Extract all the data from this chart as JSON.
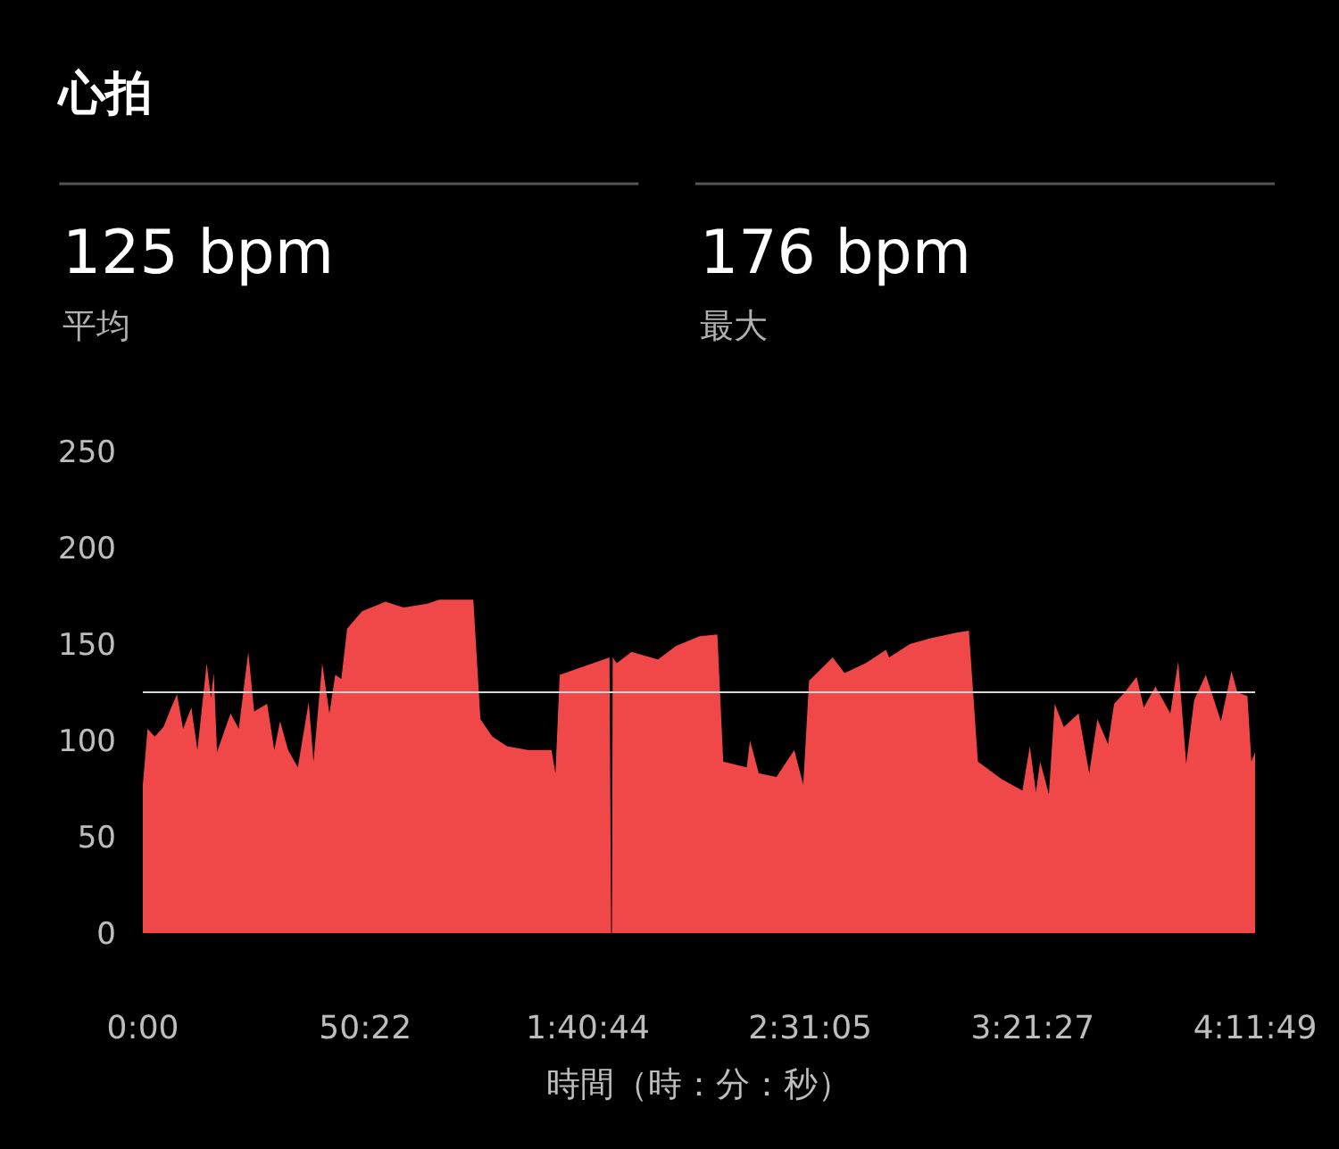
{
  "chart_data": {
    "type": "area",
    "title": "心拍",
    "xlabel": "時間（時：分：秒）",
    "annotations": [
      "125 bpm",
      "平均",
      "176 bpm",
      "最大"
    ],
    "x": [
      0,
      1.08,
      2.7,
      4.68,
      6.42,
      7.74,
      9.12,
      10.98,
      12.36,
      14.46,
      15.42,
      16.08,
      16.8,
      19.86,
      21.72,
      23.88,
      25.2,
      28.14,
      29.76,
      31.08,
      32.88,
      35.1,
      37.56,
      38.64,
      40.62,
      42.24,
      43.56,
      44.94,
      46.26,
      49.62,
      54.96,
      59.04,
      64.38,
      67.08,
      74.82,
      76.44,
      79.14,
      82.44,
      87.18,
      92.52,
      93.42,
      94.38,
      100.56,
      105.66,
      106.02,
      106.2,
      106.38,
      107.28,
      110.64,
      116.64,
      120.66,
      126,
      130.08,
      131.4,
      136.74,
      137.46,
      139.44,
      143.46,
      147.48,
      149.52,
      150.84,
      156.18,
      158.88,
      163.62,
      168.24,
      168.96,
      173.64,
      178.32,
      184.38,
      187.02,
      189.06,
      194.4,
      199.14,
      200.82,
      202.2,
      203.16,
      205.14,
      206.46,
      208.5,
      211.86,
      214.26,
      216.12,
      218.52,
      219.9,
      222.3,
      225,
      226.62,
      229.26,
      232.62,
      234.42,
      236.22,
      238.02,
      240.66,
      244.08,
      246.48,
      247.8,
      250.08,
      250.98,
      251.817
    ],
    "series": [
      {
        "color": "#f04848",
        "values": [
          77,
          106,
          102,
          107,
          117,
          124,
          106,
          117,
          95,
          140,
          122,
          135,
          94,
          114,
          106,
          146,
          115,
          119,
          95,
          110,
          95,
          86,
          120,
          89,
          140,
          114,
          134,
          132,
          158,
          167,
          172,
          169,
          171,
          173,
          173,
          111,
          102,
          97,
          95,
          95,
          83,
          134,
          139,
          143,
          0,
          0,
          143,
          140,
          146,
          142,
          149,
          154,
          155,
          89,
          86,
          100,
          83,
          81,
          95,
          77,
          131,
          143,
          135,
          140,
          147,
          143,
          150,
          153,
          156,
          157,
          89,
          80,
          74,
          97,
          73,
          89,
          72,
          119,
          107,
          114,
          83,
          111,
          98,
          119,
          125,
          133,
          117,
          128,
          114,
          141,
          88,
          121,
          134,
          110,
          136,
          125,
          123,
          89,
          94
        ]
      }
    ],
    "xlim": [
      0,
      251.817
    ],
    "xticks": [
      {
        "value": 0,
        "label": "0:00"
      },
      {
        "value": 50.367,
        "label": "50:22"
      },
      {
        "value": 100.733,
        "label": "1:40:44"
      },
      {
        "value": 151.083,
        "label": "2:31:05"
      },
      {
        "value": 201.45,
        "label": "3:21:27"
      },
      {
        "value": 251.817,
        "label": "4:11:49"
      }
    ],
    "ylim": [
      0,
      250
    ],
    "yticks": [
      0,
      50,
      100,
      150,
      200,
      250
    ],
    "ref_lines": [
      {
        "axis": "y",
        "value": 125,
        "color": "#d8d8d8"
      }
    ],
    "grid": false,
    "marker": "none"
  }
}
